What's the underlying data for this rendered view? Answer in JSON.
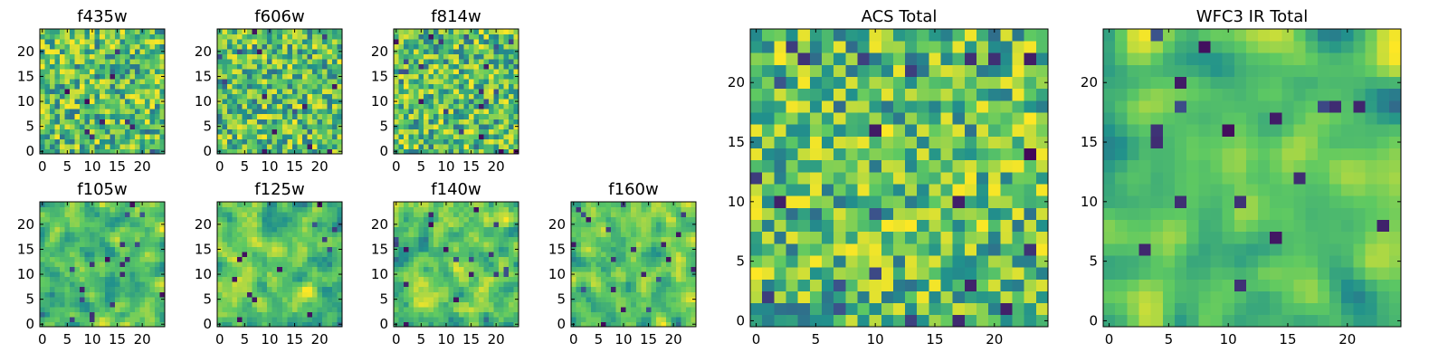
{
  "chart_data": [
    {
      "type": "heatmap",
      "title": "f435w",
      "xlim": [
        -0.5,
        24.5
      ],
      "ylim": [
        -0.5,
        24.5
      ],
      "xticks": [
        0,
        5,
        10,
        15,
        20
      ],
      "yticks": [
        0,
        5,
        10,
        15,
        20
      ],
      "grid_size": 25,
      "seed": 11,
      "smooth": 0
    },
    {
      "type": "heatmap",
      "title": "f606w",
      "xlim": [
        -0.5,
        24.5
      ],
      "ylim": [
        -0.5,
        24.5
      ],
      "xticks": [
        0,
        5,
        10,
        15,
        20
      ],
      "yticks": [
        0,
        5,
        10,
        15,
        20
      ],
      "grid_size": 25,
      "seed": 23,
      "smooth": 0
    },
    {
      "type": "heatmap",
      "title": "f814w",
      "xlim": [
        -0.5,
        24.5
      ],
      "ylim": [
        -0.5,
        24.5
      ],
      "xticks": [
        0,
        5,
        10,
        15,
        20
      ],
      "yticks": [
        0,
        5,
        10,
        15,
        20
      ],
      "grid_size": 25,
      "seed": 37,
      "smooth": 0
    },
    {
      "type": "heatmap",
      "title": "f105w",
      "xlim": [
        -0.5,
        24.5
      ],
      "ylim": [
        -0.5,
        24.5
      ],
      "xticks": [
        0,
        5,
        10,
        15,
        20
      ],
      "yticks": [
        0,
        5,
        10,
        15,
        20
      ],
      "grid_size": 25,
      "seed": 41,
      "smooth": 1
    },
    {
      "type": "heatmap",
      "title": "f125w",
      "xlim": [
        -0.5,
        24.5
      ],
      "ylim": [
        -0.5,
        24.5
      ],
      "xticks": [
        0,
        5,
        10,
        15,
        20
      ],
      "yticks": [
        0,
        5,
        10,
        15,
        20
      ],
      "grid_size": 25,
      "seed": 53,
      "smooth": 1
    },
    {
      "type": "heatmap",
      "title": "f140w",
      "xlim": [
        -0.5,
        24.5
      ],
      "ylim": [
        -0.5,
        24.5
      ],
      "xticks": [
        0,
        5,
        10,
        15,
        20
      ],
      "yticks": [
        0,
        5,
        10,
        15,
        20
      ],
      "grid_size": 25,
      "seed": 67,
      "smooth": 1
    },
    {
      "type": "heatmap",
      "title": "f160w",
      "xlim": [
        -0.5,
        24.5
      ],
      "ylim": [
        -0.5,
        24.5
      ],
      "xticks": [
        0,
        5,
        10,
        15,
        20
      ],
      "yticks": [
        0,
        5,
        10,
        15,
        20
      ],
      "grid_size": 25,
      "seed": 79,
      "smooth": 1
    },
    {
      "type": "heatmap",
      "title": "ACS Total",
      "xlim": [
        -0.5,
        24.5
      ],
      "ylim": [
        -0.5,
        24.5
      ],
      "xticks": [
        0,
        5,
        10,
        15,
        20
      ],
      "yticks": [
        0,
        5,
        10,
        15,
        20
      ],
      "grid_size": 25,
      "seed": 97,
      "smooth": 0
    },
    {
      "type": "heatmap",
      "title": "WFC3 IR Total",
      "xlim": [
        -0.5,
        24.5
      ],
      "ylim": [
        -0.5,
        24.5
      ],
      "xticks": [
        0,
        5,
        10,
        15,
        20
      ],
      "yticks": [
        0,
        5,
        10,
        15,
        20
      ],
      "grid_size": 25,
      "seed": 113,
      "smooth": 2
    }
  ],
  "colormap": [
    "#440154",
    "#3b528b",
    "#21918c",
    "#5ec962",
    "#fde725"
  ]
}
